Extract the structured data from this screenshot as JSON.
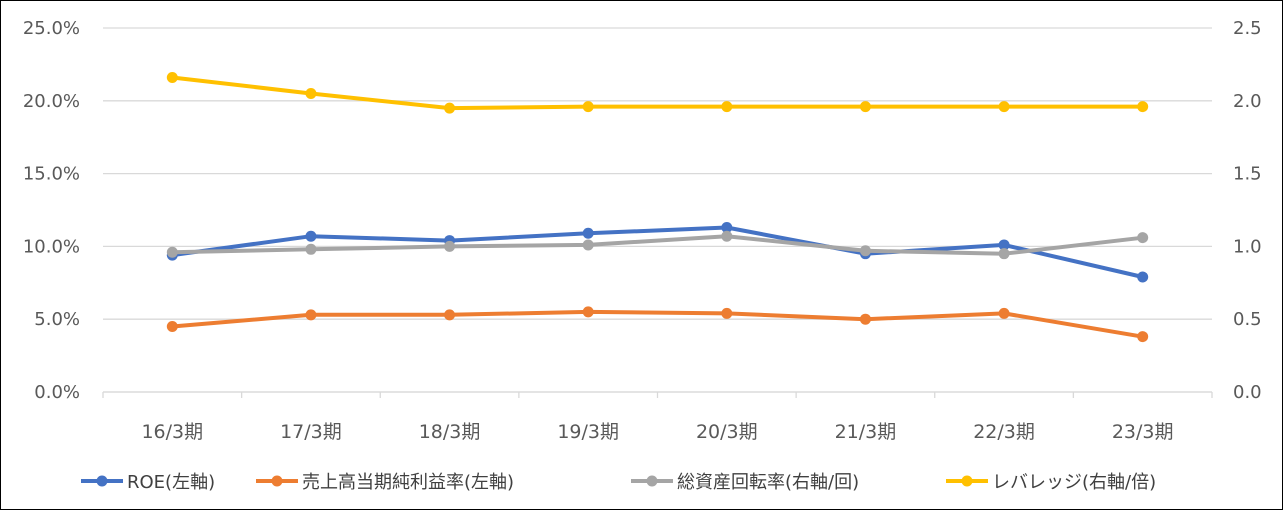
{
  "chart_data": {
    "type": "line",
    "categories": [
      "16/3期",
      "17/3期",
      "18/3期",
      "19/3期",
      "20/3期",
      "21/3期",
      "22/3期",
      "23/3期"
    ],
    "left_axis": {
      "min": 0,
      "max": 0.25,
      "step": 0.05,
      "tick_labels": [
        "0.0%",
        "5.0%",
        "10.0%",
        "15.0%",
        "20.0%",
        "25.0%"
      ]
    },
    "right_axis": {
      "min": 0,
      "max": 2.5,
      "step": 0.5,
      "tick_labels": [
        "0.0",
        "0.5",
        "1.0",
        "1.5",
        "2.0",
        "2.5"
      ]
    },
    "grid": true,
    "legend_position": "bottom",
    "series": [
      {
        "name": "ROE(左軸)",
        "axis": "left",
        "color": "#4472C4",
        "values": [
          0.094,
          0.107,
          0.104,
          0.109,
          0.113,
          0.095,
          0.101,
          0.079
        ]
      },
      {
        "name": "売上高当期純利益率(左軸)",
        "axis": "left",
        "color": "#ED7D31",
        "values": [
          0.045,
          0.053,
          0.053,
          0.055,
          0.054,
          0.05,
          0.054,
          0.038
        ]
      },
      {
        "name": "総資産回転率(右軸/回)",
        "axis": "right",
        "color": "#A5A5A5",
        "values": [
          0.96,
          0.98,
          1.0,
          1.01,
          1.07,
          0.97,
          0.95,
          1.06
        ]
      },
      {
        "name": "レバレッジ(右軸/倍)",
        "axis": "right",
        "color": "#FFC000",
        "values": [
          2.16,
          2.05,
          1.95,
          1.96,
          1.96,
          1.96,
          1.96,
          1.96
        ]
      }
    ]
  }
}
